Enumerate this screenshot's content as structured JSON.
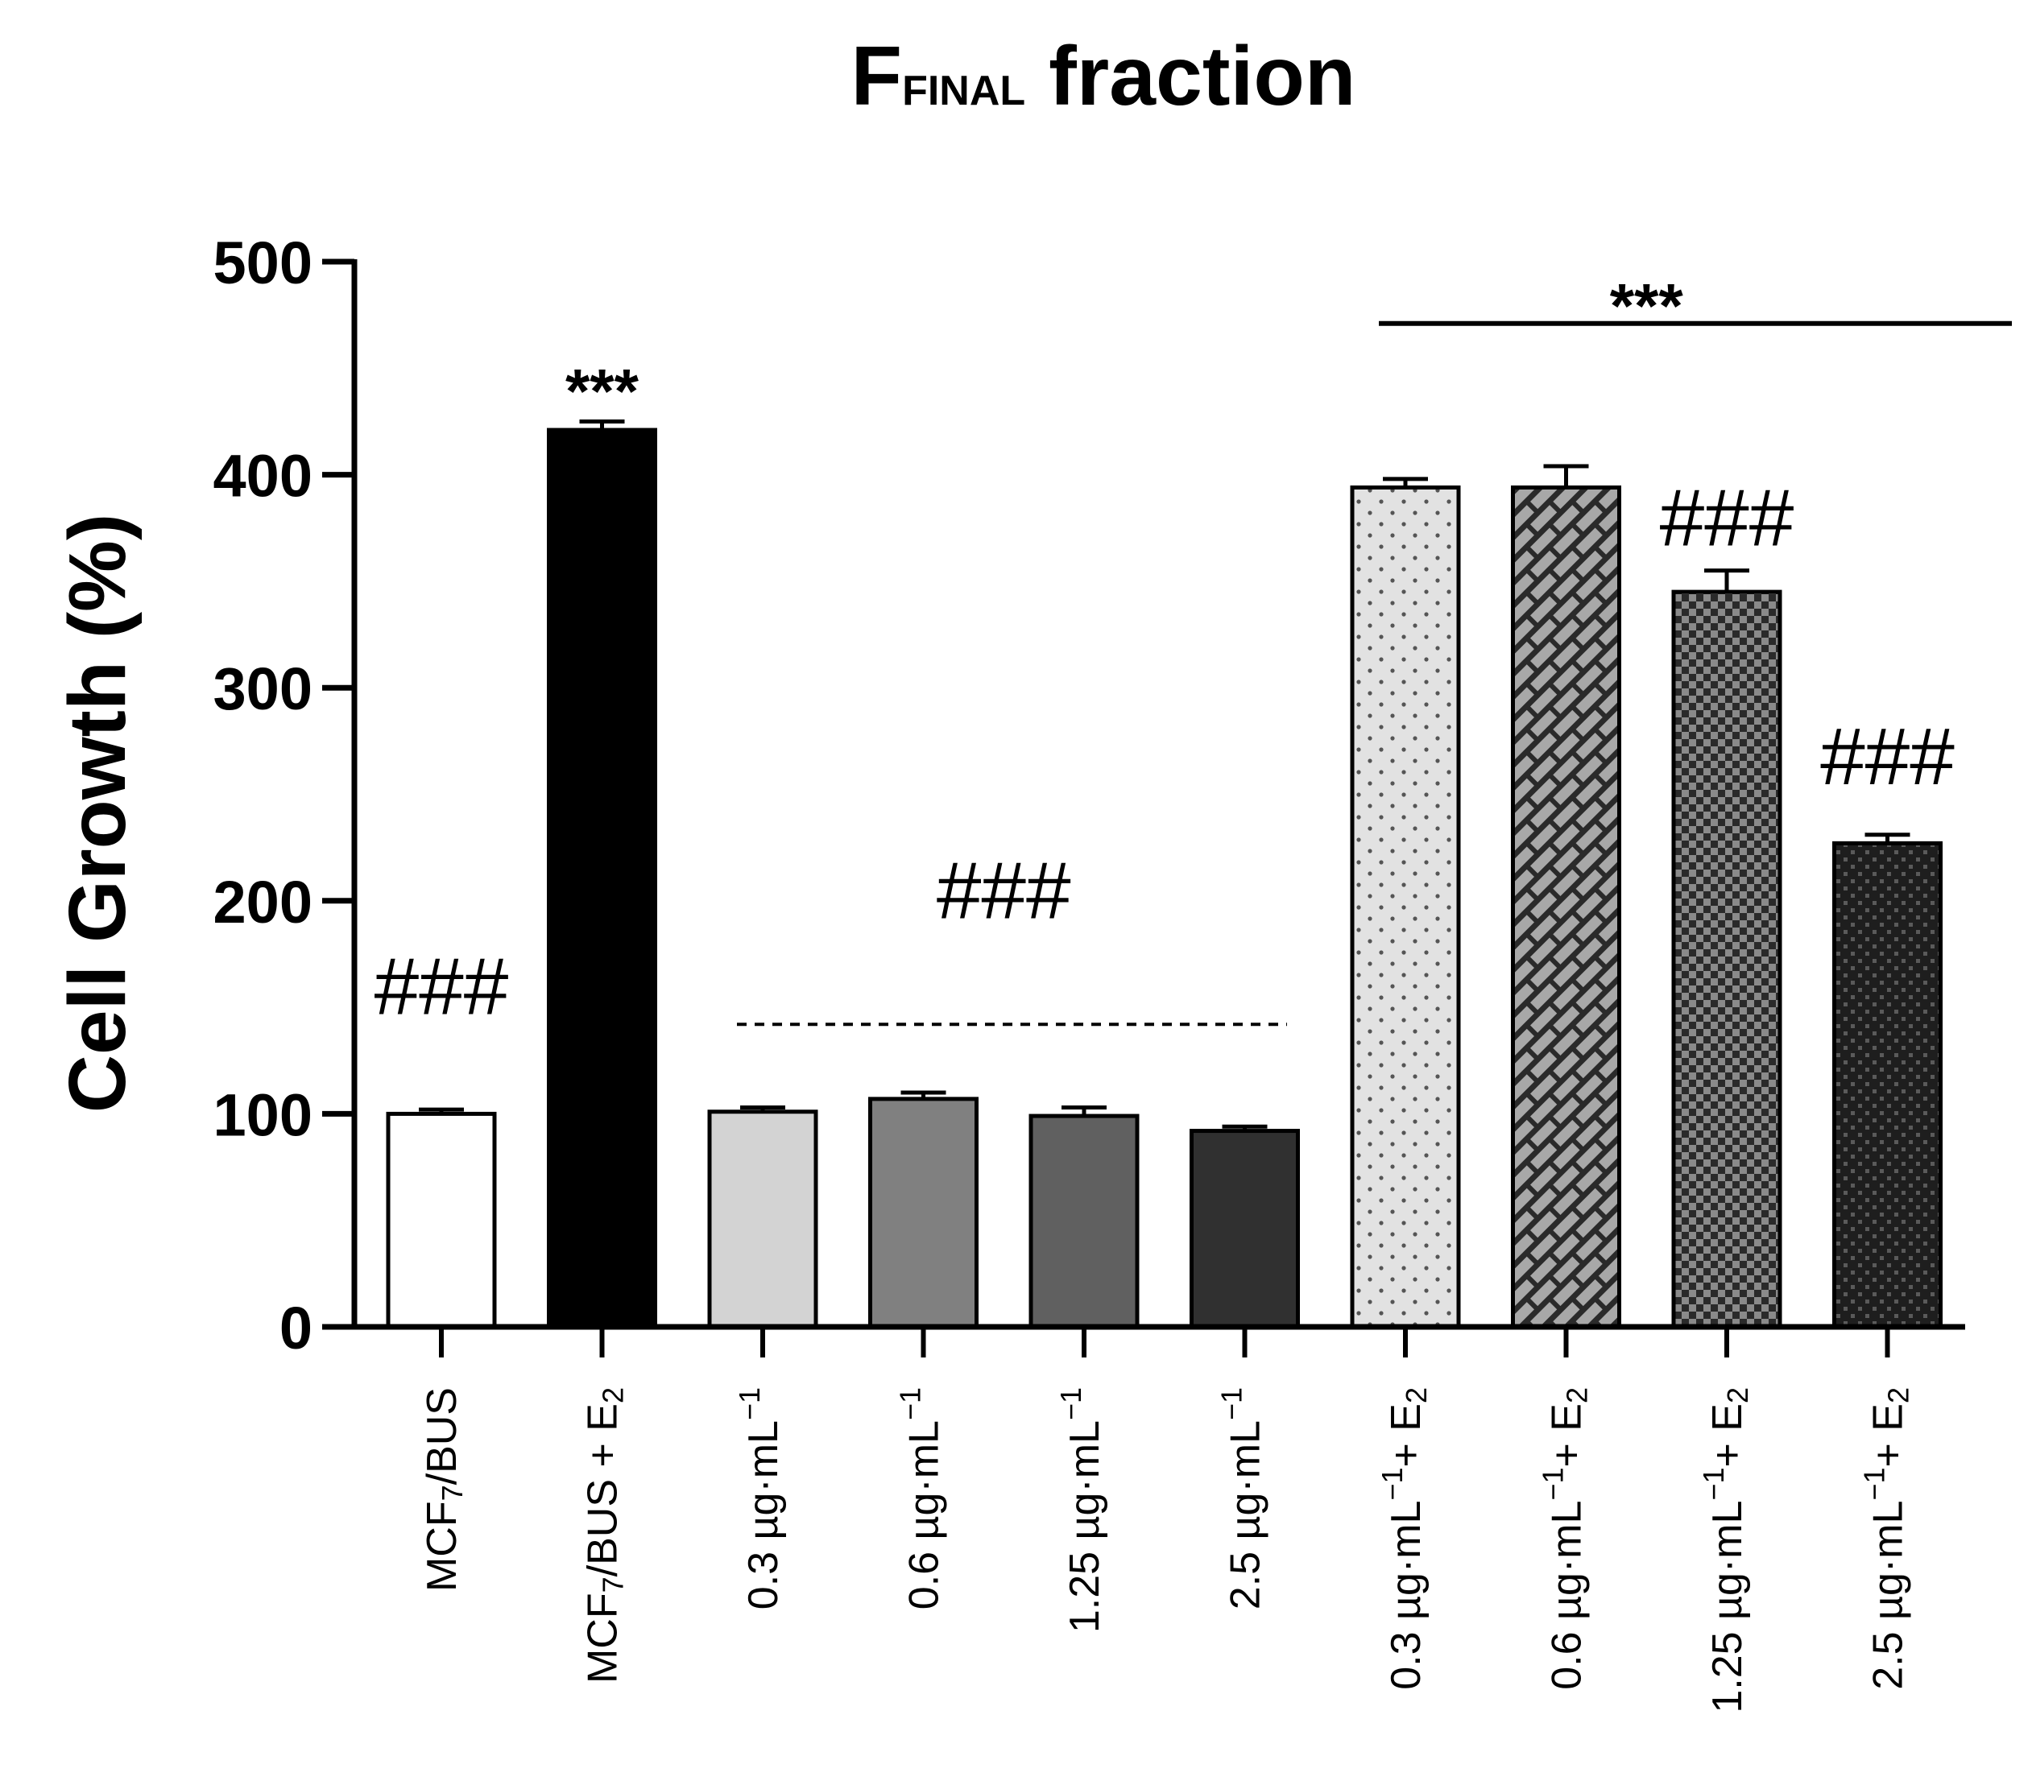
{
  "chart_data": {
    "type": "bar",
    "title": "F",
    "title_subscript": "FINAL",
    "title_rest": " fraction",
    "ylabel": "Cell Growth (%)",
    "ylim": [
      0,
      500
    ],
    "yticks": [
      "0",
      "100",
      "200",
      "300",
      "400",
      "500"
    ],
    "grid": false,
    "legend": "none",
    "categories": [
      {
        "parts": [
          "MCF",
          "7",
          "/BUS"
        ],
        "sub": [
          false,
          true,
          false
        ]
      },
      {
        "parts": [
          "MCF",
          "7",
          "/BUS + E",
          "2"
        ],
        "sub": [
          false,
          true,
          false,
          true
        ]
      },
      {
        "parts": [
          "0.3 µg·mL",
          "−1"
        ],
        "sup": [
          false,
          true
        ]
      },
      {
        "parts": [
          "0.6 µg·mL",
          "−1"
        ],
        "sup": [
          false,
          true
        ]
      },
      {
        "parts": [
          "1.25 µg·mL",
          "−1"
        ],
        "sup": [
          false,
          true
        ]
      },
      {
        "parts": [
          "2.5 µg·mL",
          "−1"
        ],
        "sup": [
          false,
          true
        ]
      },
      {
        "parts": [
          "0.3 µg·mL",
          "−1",
          "+ E",
          "2"
        ],
        "sup": [
          false,
          true,
          false,
          false
        ],
        "sub": [
          false,
          false,
          false,
          true
        ]
      },
      {
        "parts": [
          "0.6 µg·mL",
          "−1",
          "+ E",
          "2"
        ],
        "sup": [
          false,
          true,
          false,
          false
        ],
        "sub": [
          false,
          false,
          false,
          true
        ]
      },
      {
        "parts": [
          "1.25 µg·mL",
          "−1",
          "+ E",
          "2"
        ],
        "sup": [
          false,
          true,
          false,
          false
        ],
        "sub": [
          false,
          false,
          false,
          true
        ]
      },
      {
        "parts": [
          "2.5 µg·mL",
          "−1",
          "+ E",
          "2"
        ],
        "sup": [
          false,
          true,
          false,
          false
        ],
        "sub": [
          false,
          false,
          false,
          true
        ]
      }
    ],
    "values": [
      100,
      421,
      101,
      107,
      99,
      92,
      394,
      394,
      345,
      227
    ],
    "errors": [
      2,
      4,
      2,
      3,
      4,
      2,
      4,
      10,
      10,
      4
    ],
    "fills": [
      "white",
      "black",
      "#d3d3d3",
      "#808080",
      "#606060",
      "#303030",
      "dots",
      "diag-hatch",
      "checker",
      "dark-checker"
    ],
    "annotations": [
      {
        "text": "###",
        "anchor_bar": 0,
        "y": 160
      },
      {
        "text": "***",
        "anchor_bar": 1,
        "y": 450
      },
      {
        "text": "###",
        "anchor_range": [
          2,
          5
        ],
        "y": 205,
        "line": "dashed",
        "line_y": 142
      },
      {
        "text": "***",
        "anchor_range": [
          6,
          9
        ],
        "y": 490,
        "line": "solid",
        "line_y": 471
      },
      {
        "text": "###",
        "anchor_bar": 8,
        "y": 380
      },
      {
        "text": "###",
        "anchor_bar": 9,
        "y": 268
      }
    ]
  }
}
